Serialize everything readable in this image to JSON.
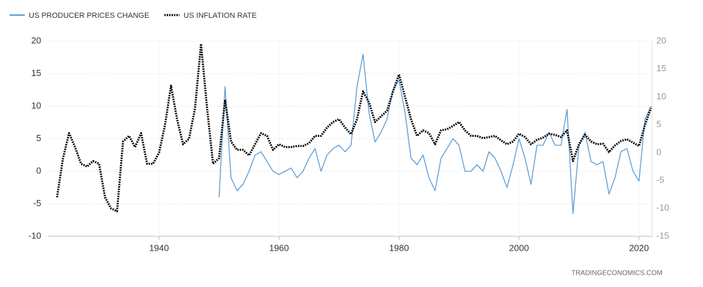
{
  "chart_data": {
    "type": "line",
    "x": [
      1923,
      1924,
      1925,
      1926,
      1927,
      1928,
      1929,
      1930,
      1931,
      1932,
      1933,
      1934,
      1935,
      1936,
      1937,
      1938,
      1939,
      1940,
      1941,
      1942,
      1943,
      1944,
      1945,
      1946,
      1947,
      1948,
      1949,
      1950,
      1951,
      1952,
      1953,
      1954,
      1955,
      1956,
      1957,
      1958,
      1959,
      1960,
      1961,
      1962,
      1963,
      1964,
      1965,
      1966,
      1967,
      1968,
      1969,
      1970,
      1971,
      1972,
      1973,
      1974,
      1975,
      1976,
      1977,
      1978,
      1979,
      1980,
      1981,
      1982,
      1983,
      1984,
      1985,
      1986,
      1987,
      1988,
      1989,
      1990,
      1991,
      1992,
      1993,
      1994,
      1995,
      1996,
      1997,
      1998,
      1999,
      2000,
      2001,
      2002,
      2003,
      2004,
      2005,
      2006,
      2007,
      2008,
      2009,
      2010,
      2011,
      2012,
      2013,
      2014,
      2015,
      2016,
      2017,
      2018,
      2019,
      2020,
      2021,
      2022
    ],
    "series": [
      {
        "name": "US PRODUCER PRICES CHANGE",
        "color": "#5b9bd5",
        "values": [
          null,
          null,
          null,
          null,
          null,
          null,
          null,
          null,
          null,
          null,
          null,
          null,
          null,
          null,
          null,
          null,
          null,
          null,
          null,
          null,
          null,
          null,
          null,
          null,
          null,
          null,
          null,
          -4,
          13,
          -1,
          -3,
          -2,
          0,
          2.5,
          3,
          1.5,
          0,
          -0.5,
          0,
          0.5,
          -1,
          0,
          2,
          3.5,
          0,
          2.5,
          3.5,
          4,
          3,
          4,
          13,
          18,
          9,
          4.5,
          6,
          8,
          12.5,
          14,
          9,
          2,
          1,
          2.5,
          -1,
          -3,
          2,
          3.5,
          5,
          4,
          0,
          0,
          1,
          0,
          3,
          2,
          0,
          -2.5,
          1,
          5,
          2,
          -2,
          4,
          4,
          6,
          4,
          4,
          9.5,
          -6.5,
          4,
          6,
          1.5,
          1,
          1.5,
          -3.5,
          -1,
          3,
          3.5,
          0,
          -1.5,
          8,
          10
        ]
      },
      {
        "name": "US INFLATION RATE",
        "color": "#000000",
        "axis": "y2",
        "dashed": true,
        "values": [
          -8,
          -1,
          3.5,
          1,
          -2,
          -2.5,
          -1.5,
          -2,
          -8,
          -10,
          -10.5,
          2,
          3,
          1,
          3.5,
          -2,
          -2,
          0,
          5,
          12,
          6,
          1.5,
          2.5,
          8,
          19.5,
          8,
          -2,
          -1,
          9.5,
          2,
          0.5,
          0.5,
          -0.5,
          1.5,
          3.5,
          3,
          0.5,
          1.5,
          1,
          1,
          1.2,
          1.2,
          1.7,
          3,
          3,
          4.5,
          5.5,
          6,
          4.5,
          3.3,
          6,
          11,
          9,
          5.5,
          6.5,
          7.5,
          11,
          14,
          10,
          6,
          3,
          4,
          3.5,
          1.5,
          4,
          4.2,
          4.8,
          5.5,
          4,
          3,
          3,
          2.6,
          2.8,
          3,
          2.2,
          1.5,
          2,
          3.4,
          2.8,
          1.5,
          2.3,
          2.7,
          3.4,
          3.2,
          2.8,
          4,
          -1.5,
          1.5,
          3.2,
          2,
          1.5,
          1.6,
          0.1,
          1.3,
          2.1,
          2.4,
          1.8,
          1.2,
          5,
          8
        ]
      }
    ],
    "xlim": [
      1921.5,
      2022.2
    ],
    "xticks": [
      1940,
      1960,
      1980,
      2000,
      2020
    ],
    "ylim": [
      -10,
      20
    ],
    "yticks": [
      -10,
      -5,
      0,
      5,
      10,
      15,
      20
    ],
    "y2lim": [
      -15,
      20
    ],
    "y2ticks": [
      -15,
      -10,
      -5,
      0,
      5,
      10,
      15,
      20
    ],
    "grid": true,
    "legend": "top-left",
    "source": "TRADINGECONOMICS.COM"
  }
}
